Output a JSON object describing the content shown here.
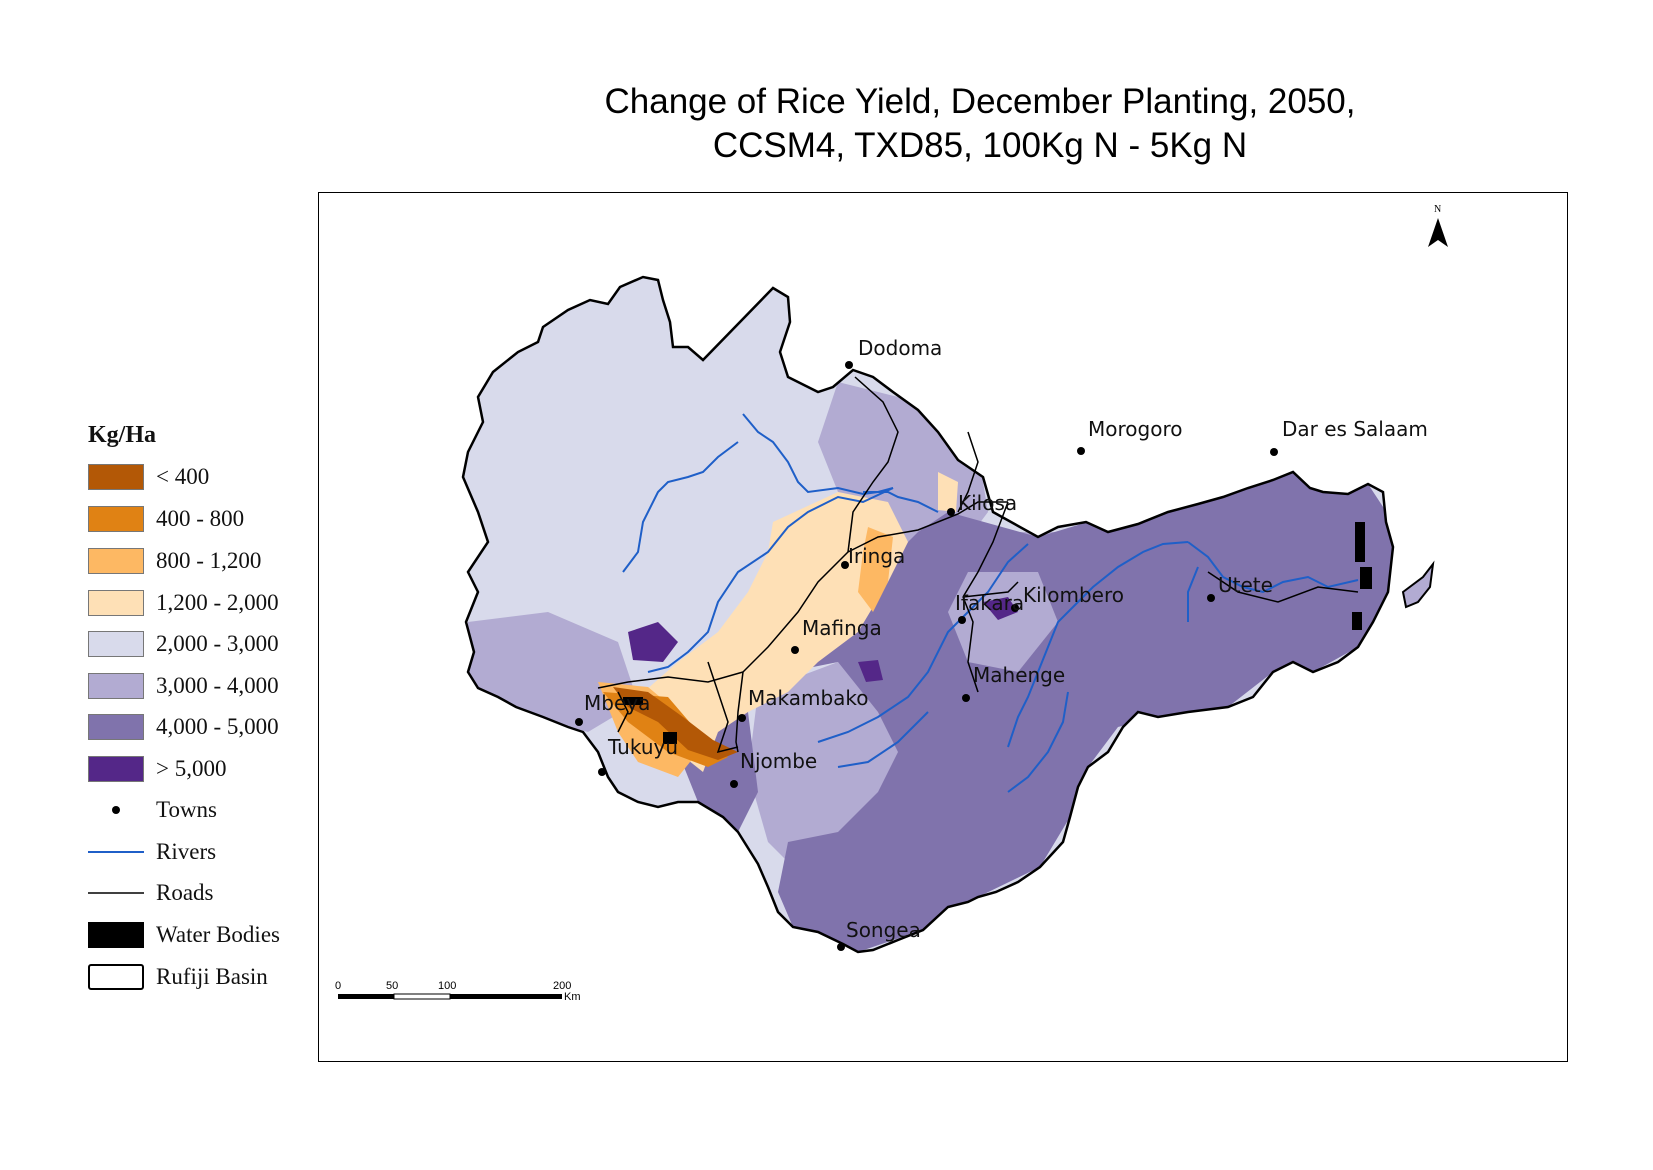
{
  "title": {
    "line1": "Change of Rice Yield, December Planting, 2050,",
    "line2": "CCSM4, TXD85, 100Kg N - 5Kg N"
  },
  "legend": {
    "title": "Kg/Ha",
    "classes": [
      {
        "label": "< 400",
        "color": "#b35806"
      },
      {
        "label": "400 - 800",
        "color": "#e08214"
      },
      {
        "label": "800 - 1,200",
        "color": "#fdb863"
      },
      {
        "label": "1,200 - 2,000",
        "color": "#fee0b6"
      },
      {
        "label": "2,000 - 3,000",
        "color": "#d8daeb"
      },
      {
        "label": "3,000 - 4,000",
        "color": "#b2abd2"
      },
      {
        "label": "4,000 - 5,000",
        "color": "#8073ac"
      },
      {
        "label": "> 5,000",
        "color": "#542788"
      }
    ],
    "symbols": {
      "towns": "Towns",
      "rivers": "Rivers",
      "roads": "Roads",
      "water_bodies": "Water Bodies",
      "basin": "Rufiji Basin"
    },
    "symbol_colors": {
      "river": "#1f5fc8",
      "road": "#000000",
      "water": "#000000"
    }
  },
  "towns": {
    "dodoma": "Dodoma",
    "morogoro": "Morogoro",
    "dar": "Dar es Salaam",
    "kilosa": "Kilosa",
    "iringa": "Iringa",
    "kilombero": "Kilombero",
    "utete": "Utete",
    "ifakara": "Ifakara",
    "mafinga": "Mafinga",
    "mahenge": "Mahenge",
    "mbeya": "Mbeya",
    "makambako": "Makambako",
    "tukuyu": "Tukuyu",
    "njombe": "Njombe",
    "songea": "Songea"
  },
  "north_arrow": {
    "label": "N"
  },
  "scale_bar": {
    "ticks": [
      "0",
      "50",
      "100",
      "200"
    ],
    "unit": "Km"
  }
}
